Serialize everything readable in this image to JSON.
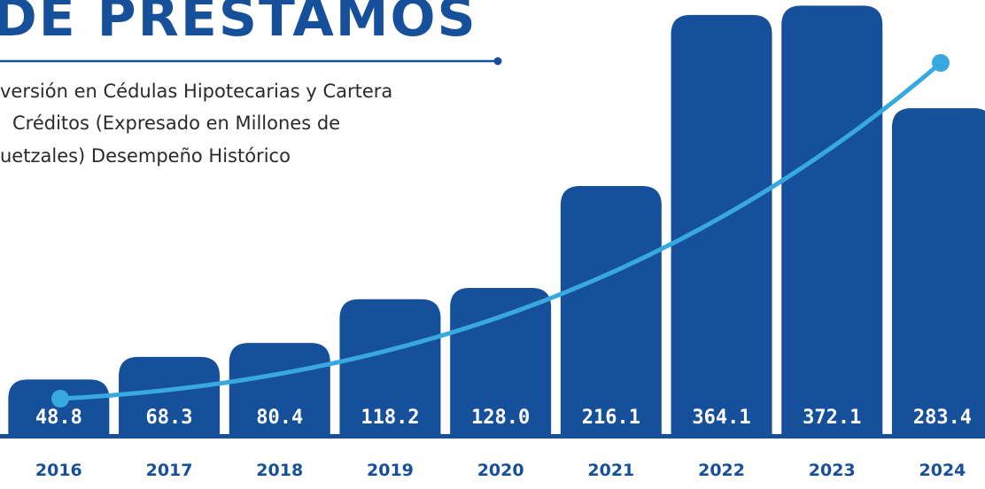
{
  "chart_data": {
    "type": "bar",
    "title": "DE PRESTAMOS",
    "subtitle": [
      "versión en Cédulas Hipotecarias y Cartera",
      "Créditos (Expresado en Millones de",
      "uetzales) Desempeño Histórico"
    ],
    "categories": [
      "2016",
      "2017",
      "2018",
      "2019",
      "2020",
      "2021",
      "2022",
      "2023",
      "2024"
    ],
    "values": [
      48.8,
      68.3,
      80.4,
      118.2,
      128.0,
      216.1,
      364.1,
      372.1,
      283.4
    ],
    "value_labels": [
      "48.8",
      "68.3",
      "80.4",
      "118.2",
      "128.0",
      "216.1",
      "364.1",
      "372.1",
      "283.4"
    ],
    "color": "#17509a",
    "ylim": [
      0,
      377
    ]
  }
}
